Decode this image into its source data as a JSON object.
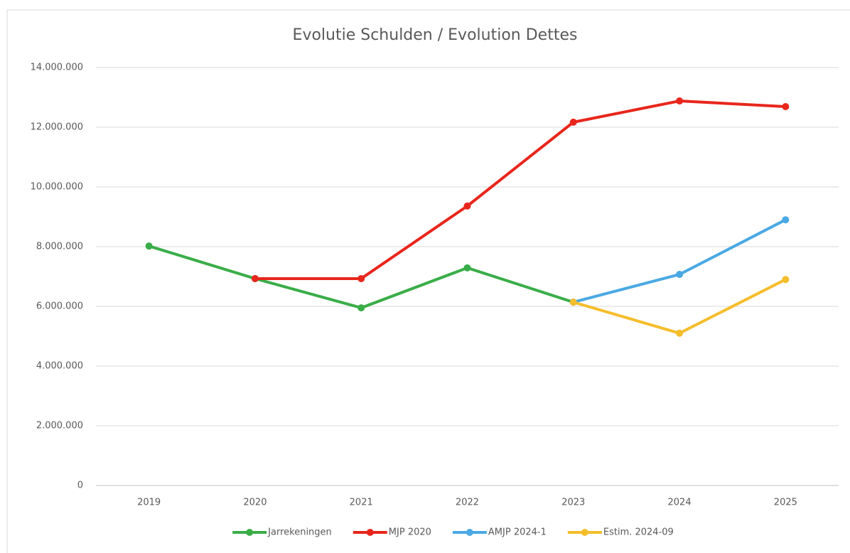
{
  "chart_data": {
    "type": "line",
    "title": "Evolutie Schulden / Evolution Dettes",
    "categories": [
      "2019",
      "2020",
      "2021",
      "2022",
      "2023",
      "2024",
      "2025"
    ],
    "series": [
      {
        "name": "Jarrekeningen",
        "color": "#3aad48",
        "values": [
          8020000,
          6930000,
          5950000,
          7290000,
          6140000,
          null,
          null
        ]
      },
      {
        "name": "MJP 2020",
        "color": "#e8261c",
        "values": [
          null,
          6930000,
          6930000,
          9360000,
          12170000,
          12880000,
          12690000
        ]
      },
      {
        "name": "AMJP 2024-1",
        "color": "#4aa9e3",
        "values": [
          null,
          null,
          null,
          null,
          6140000,
          7070000,
          8900000
        ]
      },
      {
        "name": "Estim. 2024-09",
        "color": "#f4bd2b",
        "values": [
          null,
          null,
          null,
          null,
          6140000,
          5100000,
          6900000
        ]
      }
    ],
    "ylim": [
      0,
      14000000
    ],
    "yticks": [
      0,
      {
        "value": 2000000,
        "label": "2.000.000"
      },
      {
        "value": 4000000,
        "label": "4.000.000"
      },
      {
        "value": 6000000,
        "label": "6.000.000"
      },
      {
        "value": 8000000,
        "label": "8.000.000"
      },
      {
        "value": 10000000,
        "label": "10.000.000"
      },
      {
        "value": 12000000,
        "label": "12.000.000"
      },
      {
        "value": 14000000,
        "label": "14.000.000"
      }
    ],
    "grid": true,
    "legend": "bottom"
  }
}
